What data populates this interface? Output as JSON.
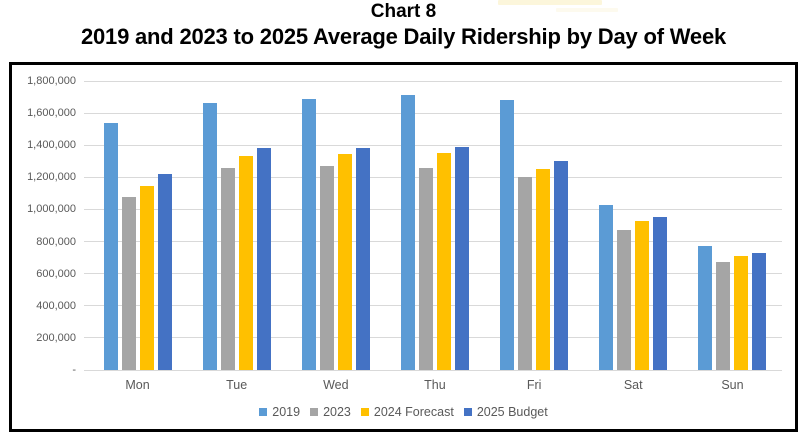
{
  "page": {
    "title_line1": "Chart 8",
    "title_line2": "2019 and 2023 to 2025 Average Daily Ridership by Day of Week"
  },
  "colors": {
    "gridline": "#D9D9D9",
    "axis_text": "#595959",
    "frame_border": "#000000",
    "series_2019": "#5B9BD5",
    "series_2023": "#A5A5A5",
    "series_2024_forecast": "#FFC000",
    "series_2025_budget": "#4472C4"
  },
  "chart_data": {
    "type": "bar",
    "title": "Chart 8",
    "subtitle": "2019 and 2023 to 2025 Average Daily Ridership by Day of Week",
    "categories": [
      "Mon",
      "Tue",
      "Wed",
      "Thu",
      "Fri",
      "Sat",
      "Sun"
    ],
    "series": [
      {
        "name": "2019",
        "color": "#5B9BD5",
        "values": [
          1540000,
          1665000,
          1690000,
          1710000,
          1680000,
          1025000,
          775000
        ]
      },
      {
        "name": "2023",
        "color": "#A5A5A5",
        "values": [
          1075000,
          1260000,
          1270000,
          1260000,
          1200000,
          875000,
          670000
        ]
      },
      {
        "name": "2024 Forecast",
        "color": "#FFC000",
        "values": [
          1145000,
          1335000,
          1345000,
          1350000,
          1255000,
          925000,
          710000
        ]
      },
      {
        "name": "2025 Budget",
        "color": "#4472C4",
        "values": [
          1220000,
          1385000,
          1385000,
          1390000,
          1300000,
          950000,
          730000
        ]
      }
    ],
    "ylim": [
      0,
      1800000
    ],
    "y_tick_step": 200000,
    "y_tick_labels": [
      "-",
      "200,000",
      "400,000",
      "600,000",
      "800,000",
      "1,000,000",
      "1,200,000",
      "1,400,000",
      "1,600,000",
      "1,800,000"
    ],
    "xlabel": "",
    "ylabel": "",
    "grid": true,
    "legend_position": "bottom",
    "legend_entries": [
      "2019",
      "2023",
      "2024 Forecast",
      "2025 Budget"
    ]
  }
}
